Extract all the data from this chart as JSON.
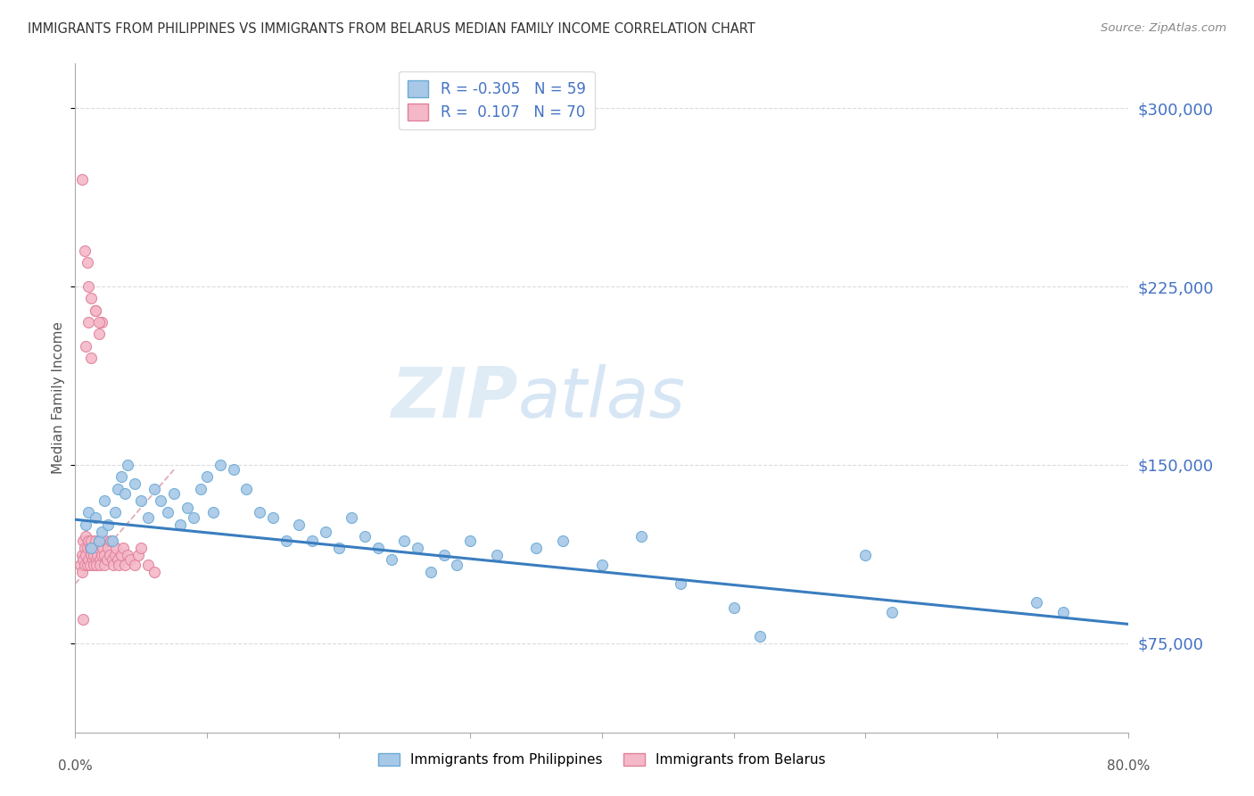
{
  "title": "IMMIGRANTS FROM PHILIPPINES VS IMMIGRANTS FROM BELARUS MEDIAN FAMILY INCOME CORRELATION CHART",
  "source": "Source: ZipAtlas.com",
  "ylabel": "Median Family Income",
  "xlim": [
    0.0,
    0.8
  ],
  "ylim": [
    37500,
    318750
  ],
  "yticks": [
    75000,
    150000,
    225000,
    300000
  ],
  "xticks": [
    0.0,
    0.1,
    0.2,
    0.3,
    0.4,
    0.5,
    0.6,
    0.7,
    0.8
  ],
  "xtick_labels": [
    "0.0%",
    "",
    "",
    "",
    "",
    "",
    "",
    "",
    "80.0%"
  ],
  "ytick_labels": [
    "$75,000",
    "$150,000",
    "$225,000",
    "$300,000"
  ],
  "philippines_color": "#a8c8e8",
  "philippines_edge": "#6aaad4",
  "belarus_color": "#f4b8c8",
  "belarus_edge": "#e0809a",
  "philippines_line_color": "#3a7dbf",
  "belarus_line_color": "#d4889a",
  "philippines_R": -0.305,
  "philippines_N": 59,
  "belarus_R": 0.107,
  "belarus_N": 70,
  "watermark": "ZIPatlas",
  "background_color": "#ffffff",
  "grid_color": "#cccccc",
  "philippines_scatter_x": [
    0.008,
    0.01,
    0.012,
    0.015,
    0.018,
    0.02,
    0.022,
    0.025,
    0.028,
    0.03,
    0.032,
    0.035,
    0.038,
    0.04,
    0.045,
    0.05,
    0.055,
    0.06,
    0.065,
    0.07,
    0.075,
    0.08,
    0.085,
    0.09,
    0.095,
    0.1,
    0.105,
    0.11,
    0.12,
    0.13,
    0.14,
    0.15,
    0.16,
    0.17,
    0.18,
    0.19,
    0.2,
    0.21,
    0.22,
    0.23,
    0.24,
    0.25,
    0.26,
    0.27,
    0.28,
    0.29,
    0.3,
    0.32,
    0.35,
    0.37,
    0.4,
    0.43,
    0.46,
    0.5,
    0.52,
    0.6,
    0.62,
    0.73,
    0.75
  ],
  "philippines_scatter_y": [
    125000,
    130000,
    115000,
    128000,
    118000,
    122000,
    135000,
    125000,
    118000,
    130000,
    140000,
    145000,
    138000,
    150000,
    142000,
    135000,
    128000,
    140000,
    135000,
    130000,
    138000,
    125000,
    132000,
    128000,
    140000,
    145000,
    130000,
    150000,
    148000,
    140000,
    130000,
    128000,
    118000,
    125000,
    118000,
    122000,
    115000,
    128000,
    120000,
    115000,
    110000,
    118000,
    115000,
    105000,
    112000,
    108000,
    118000,
    112000,
    115000,
    118000,
    108000,
    120000,
    100000,
    90000,
    78000,
    112000,
    88000,
    92000,
    88000
  ],
  "belarus_scatter_x": [
    0.004,
    0.005,
    0.005,
    0.006,
    0.006,
    0.007,
    0.007,
    0.008,
    0.008,
    0.009,
    0.009,
    0.01,
    0.01,
    0.011,
    0.011,
    0.012,
    0.012,
    0.013,
    0.013,
    0.014,
    0.014,
    0.015,
    0.015,
    0.016,
    0.016,
    0.017,
    0.018,
    0.018,
    0.019,
    0.019,
    0.02,
    0.02,
    0.021,
    0.022,
    0.022,
    0.023,
    0.024,
    0.025,
    0.026,
    0.027,
    0.028,
    0.029,
    0.03,
    0.031,
    0.032,
    0.033,
    0.035,
    0.036,
    0.038,
    0.04,
    0.042,
    0.045,
    0.048,
    0.05,
    0.055,
    0.06,
    0.008,
    0.01,
    0.012,
    0.015,
    0.018,
    0.02,
    0.01,
    0.012,
    0.015,
    0.018,
    0.005,
    0.007,
    0.009,
    0.006
  ],
  "belarus_scatter_y": [
    108000,
    112000,
    105000,
    118000,
    110000,
    115000,
    108000,
    120000,
    112000,
    115000,
    108000,
    118000,
    110000,
    115000,
    108000,
    112000,
    118000,
    110000,
    115000,
    108000,
    112000,
    118000,
    115000,
    110000,
    108000,
    112000,
    115000,
    118000,
    110000,
    108000,
    112000,
    118000,
    115000,
    112000,
    108000,
    118000,
    110000,
    115000,
    112000,
    118000,
    110000,
    108000,
    112000,
    115000,
    110000,
    108000,
    112000,
    115000,
    108000,
    112000,
    110000,
    108000,
    112000,
    115000,
    108000,
    105000,
    200000,
    210000,
    195000,
    215000,
    205000,
    210000,
    225000,
    220000,
    215000,
    210000,
    270000,
    240000,
    235000,
    85000
  ],
  "philippines_trend_x": [
    0.0,
    0.8
  ],
  "philippines_trend_y": [
    127000,
    83000
  ],
  "belarus_trend_x": [
    0.0,
    0.075
  ],
  "belarus_trend_y": [
    100000,
    148000
  ],
  "bottom_legend_labels": [
    "Immigrants from Philippines",
    "Immigrants from Belarus"
  ]
}
